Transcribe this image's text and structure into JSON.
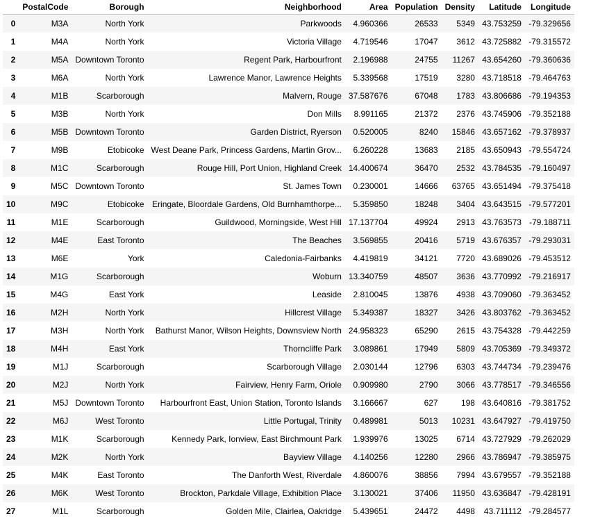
{
  "table": {
    "columns": [
      "",
      "PostalCode",
      "Borough",
      "Neighborhood",
      "Area",
      "Population",
      "Density",
      "Latitude",
      "Longitude"
    ],
    "rows": [
      [
        "0",
        "M3A",
        "North York",
        "Parkwoods",
        "4.960366",
        "26533",
        "5349",
        "43.753259",
        "-79.329656"
      ],
      [
        "1",
        "M4A",
        "North York",
        "Victoria Village",
        "4.719546",
        "17047",
        "3612",
        "43.725882",
        "-79.315572"
      ],
      [
        "2",
        "M5A",
        "Downtown Toronto",
        "Regent Park, Harbourfront",
        "2.196988",
        "24755",
        "11267",
        "43.654260",
        "-79.360636"
      ],
      [
        "3",
        "M6A",
        "North York",
        "Lawrence Manor, Lawrence Heights",
        "5.339568",
        "17519",
        "3280",
        "43.718518",
        "-79.464763"
      ],
      [
        "4",
        "M1B",
        "Scarborough",
        "Malvern, Rouge",
        "37.587676",
        "67048",
        "1783",
        "43.806686",
        "-79.194353"
      ],
      [
        "5",
        "M3B",
        "North York",
        "Don Mills",
        "8.991165",
        "21372",
        "2376",
        "43.745906",
        "-79.352188"
      ],
      [
        "6",
        "M5B",
        "Downtown Toronto",
        "Garden District, Ryerson",
        "0.520005",
        "8240",
        "15846",
        "43.657162",
        "-79.378937"
      ],
      [
        "7",
        "M9B",
        "Etobicoke",
        "West Deane Park, Princess Gardens, Martin Grov...",
        "6.260228",
        "13683",
        "2185",
        "43.650943",
        "-79.554724"
      ],
      [
        "8",
        "M1C",
        "Scarborough",
        "Rouge Hill, Port Union, Highland Creek",
        "14.400674",
        "36470",
        "2532",
        "43.784535",
        "-79.160497"
      ],
      [
        "9",
        "M5C",
        "Downtown Toronto",
        "St. James Town",
        "0.230001",
        "14666",
        "63765",
        "43.651494",
        "-79.375418"
      ],
      [
        "10",
        "M9C",
        "Etobicoke",
        "Eringate, Bloordale Gardens, Old Burnhamthorpe...",
        "5.359850",
        "18248",
        "3404",
        "43.643515",
        "-79.577201"
      ],
      [
        "11",
        "M1E",
        "Scarborough",
        "Guildwood, Morningside, West Hill",
        "17.137704",
        "49924",
        "2913",
        "43.763573",
        "-79.188711"
      ],
      [
        "12",
        "M4E",
        "East Toronto",
        "The Beaches",
        "3.569855",
        "20416",
        "5719",
        "43.676357",
        "-79.293031"
      ],
      [
        "13",
        "M6E",
        "York",
        "Caledonia-Fairbanks",
        "4.419819",
        "34121",
        "7720",
        "43.689026",
        "-79.453512"
      ],
      [
        "14",
        "M1G",
        "Scarborough",
        "Woburn",
        "13.340759",
        "48507",
        "3636",
        "43.770992",
        "-79.216917"
      ],
      [
        "15",
        "M4G",
        "East York",
        "Leaside",
        "2.810045",
        "13876",
        "4938",
        "43.709060",
        "-79.363452"
      ],
      [
        "16",
        "M2H",
        "North York",
        "Hillcrest Village",
        "5.349387",
        "18327",
        "3426",
        "43.803762",
        "-79.363452"
      ],
      [
        "17",
        "M3H",
        "North York",
        "Bathurst Manor, Wilson Heights, Downsview North",
        "24.958323",
        "65290",
        "2615",
        "43.754328",
        "-79.442259"
      ],
      [
        "18",
        "M4H",
        "East York",
        "Thorncliffe Park",
        "3.089861",
        "17949",
        "5809",
        "43.705369",
        "-79.349372"
      ],
      [
        "19",
        "M1J",
        "Scarborough",
        "Scarborough Village",
        "2.030144",
        "12796",
        "6303",
        "43.744734",
        "-79.239476"
      ],
      [
        "20",
        "M2J",
        "North York",
        "Fairview, Henry Farm, Oriole",
        "0.909980",
        "2790",
        "3066",
        "43.778517",
        "-79.346556"
      ],
      [
        "21",
        "M5J",
        "Downtown Toronto",
        "Harbourfront East, Union Station, Toronto Islands",
        "3.166667",
        "627",
        "198",
        "43.640816",
        "-79.381752"
      ],
      [
        "22",
        "M6J",
        "West Toronto",
        "Little Portugal, Trinity",
        "0.489981",
        "5013",
        "10231",
        "43.647927",
        "-79.419750"
      ],
      [
        "23",
        "M1K",
        "Scarborough",
        "Kennedy Park, Ionview, East Birchmount Park",
        "1.939976",
        "13025",
        "6714",
        "43.727929",
        "-79.262029"
      ],
      [
        "24",
        "M2K",
        "North York",
        "Bayview Village",
        "4.140256",
        "12280",
        "2966",
        "43.786947",
        "-79.385975"
      ],
      [
        "25",
        "M4K",
        "East Toronto",
        "The Danforth West, Riverdale",
        "4.860076",
        "38856",
        "7994",
        "43.679557",
        "-79.352188"
      ],
      [
        "26",
        "M6K",
        "West Toronto",
        "Brockton, Parkdale Village, Exhibition Place",
        "3.130021",
        "37406",
        "11950",
        "43.636847",
        "-79.428191"
      ],
      [
        "27",
        "M1L",
        "Scarborough",
        "Golden Mile, Clairlea, Oakridge",
        "5.439651",
        "24472",
        "4498",
        "43.711112",
        "-79.284577"
      ]
    ]
  }
}
